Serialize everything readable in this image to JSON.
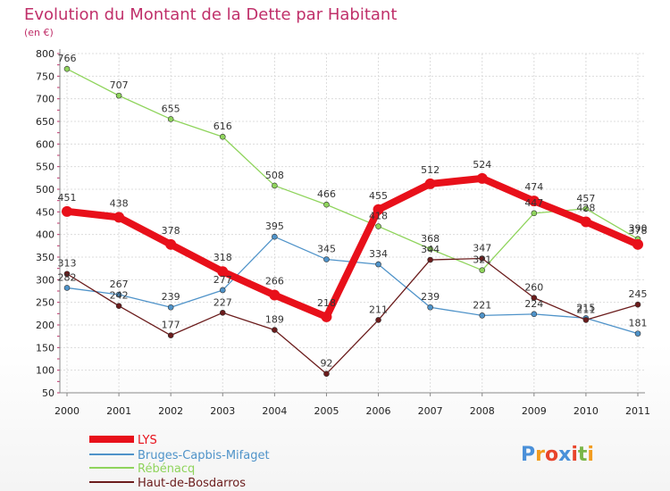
{
  "title": "Evolution du Montant de la Dette par Habitant",
  "unit": "(en €)",
  "logo": [
    "P",
    "r",
    "o",
    "x",
    "i",
    "t",
    "i"
  ],
  "logo_colors": [
    "#4a90d9",
    "#f29c1f",
    "#e8452c",
    "#4a90d9",
    "#e8452c",
    "#7ab648",
    "#f29c1f"
  ],
  "chart_data": {
    "type": "line",
    "x": [
      "2000",
      "2001",
      "2002",
      "2003",
      "2004",
      "2005",
      "2006",
      "2007",
      "2008",
      "2009",
      "2010",
      "2011"
    ],
    "ylim": [
      50,
      800
    ],
    "yticks": [
      50,
      100,
      150,
      200,
      250,
      300,
      350,
      400,
      450,
      500,
      550,
      600,
      650,
      700,
      750,
      800
    ],
    "grid": true,
    "legend_position": "bottom-left",
    "series": [
      {
        "name": "LYS",
        "color": "#e8101a",
        "values": [
          451,
          438,
          378,
          318,
          266,
          218,
          455,
          512,
          524,
          474,
          428,
          378
        ]
      },
      {
        "name": "Bruges-Capbis-Mifaget",
        "color": "#4f93c9",
        "values": [
          282,
          267,
          239,
          277,
          395,
          345,
          334,
          239,
          221,
          224,
          215,
          181
        ]
      },
      {
        "name": "Rébénacq",
        "color": "#8fd45c",
        "values": [
          766,
          707,
          655,
          616,
          508,
          466,
          418,
          368,
          321,
          447,
          457,
          390
        ]
      },
      {
        "name": "Haut-de-Bosdarros",
        "color": "#6b1c1c",
        "values": [
          313,
          242,
          177,
          227,
          189,
          92,
          211,
          344,
          347,
          260,
          211,
          245
        ]
      }
    ]
  }
}
